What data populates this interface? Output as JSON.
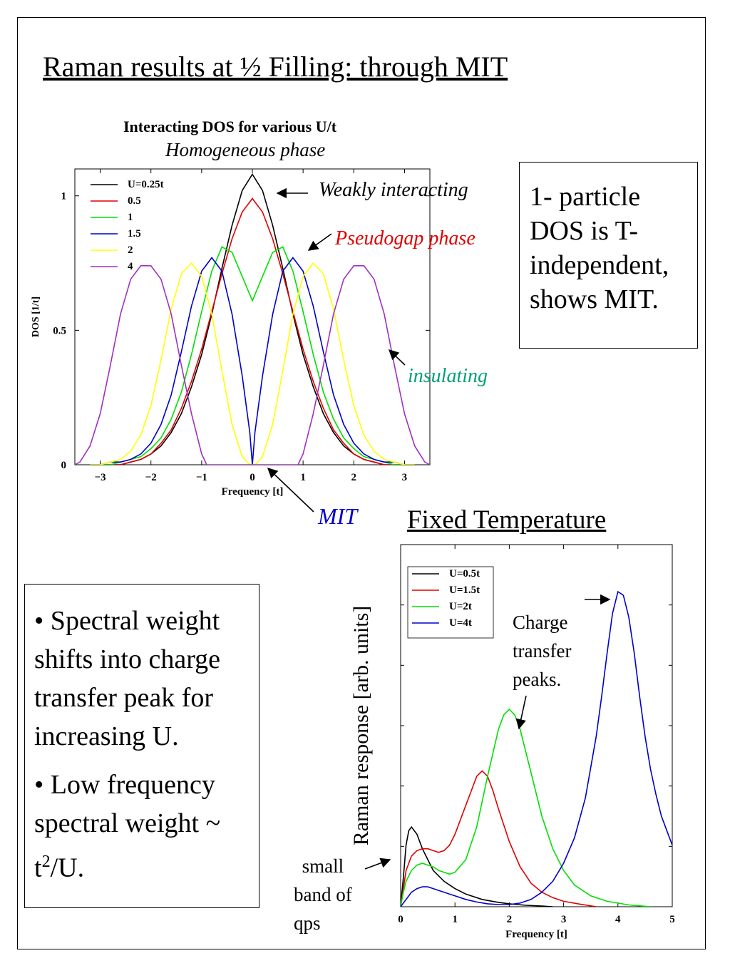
{
  "slide": {
    "title": "Raman results at ½ Filling: through MIT"
  },
  "chart1": {
    "heading": "Interacting DOS for various U/t",
    "subheading": "Homogeneous phase"
  },
  "annotations": {
    "weakly": "Weakly interacting",
    "pseudogap": "Pseudogap phase",
    "insulating": "insulating",
    "mit": "MIT",
    "fixed_temperature": "Fixed Temperature",
    "charge_transfer": [
      "Charge",
      "transfer",
      "peaks."
    ],
    "small_band": [
      "small",
      "band of",
      "qps"
    ]
  },
  "box_dos": {
    "lines": [
      "1- particle",
      "DOS is T-",
      "independent,",
      "shows MIT."
    ]
  },
  "box_bullets": {
    "bullet1": "• Spectral weight shifts into charge transfer peak for increasing U.",
    "bullet2_text": "• Low frequency spectral weight ~ t",
    "bullet2_sup": "2",
    "bullet2_end": "/U."
  },
  "colors": {
    "black": "#000000",
    "red": "#e00000",
    "green": "#00e000",
    "blue": "#0000cc",
    "yellow": "#ffff00",
    "purple": "#a030c0",
    "annotation_red": "#e00000",
    "annotation_teal": "#00a07a",
    "annotation_blue": "#0000cc"
  },
  "chart_data": [
    {
      "type": "line",
      "title": "",
      "xlabel": "Frequency [t]",
      "ylabel": "DOS [1/t]",
      "xlim": [
        -3.5,
        3.5
      ],
      "ylim": [
        0,
        1.1
      ],
      "xticks": [
        -3,
        -2,
        -1,
        0,
        1,
        2,
        3
      ],
      "xtick_labels": [
        "−3",
        "−2",
        "−1",
        "0",
        "1",
        "2",
        "3"
      ],
      "yticks": [
        0,
        0.5,
        1
      ],
      "ytick_labels": [
        "0",
        "0.5",
        "1"
      ],
      "legend_position": "top-left",
      "series": [
        {
          "name": "U=0.25t",
          "color": "#000000",
          "x": [
            -3.2,
            -3.0,
            -2.8,
            -2.6,
            -2.4,
            -2.2,
            -2.0,
            -1.8,
            -1.6,
            -1.4,
            -1.2,
            -1.0,
            -0.8,
            -0.6,
            -0.4,
            -0.2,
            0,
            0.2,
            0.4,
            0.6,
            0.8,
            1.0,
            1.2,
            1.4,
            1.6,
            1.8,
            2.0,
            2.2,
            2.4,
            2.6,
            2.8,
            3.0,
            3.2
          ],
          "y": [
            0,
            0,
            0,
            0,
            0.01,
            0.02,
            0.04,
            0.07,
            0.12,
            0.19,
            0.29,
            0.41,
            0.56,
            0.73,
            0.89,
            1.02,
            1.08,
            1.02,
            0.89,
            0.73,
            0.56,
            0.41,
            0.29,
            0.19,
            0.12,
            0.07,
            0.04,
            0.02,
            0.01,
            0,
            0,
            0,
            0
          ]
        },
        {
          "name": "0.5",
          "color": "#e00000",
          "x": [
            -3.2,
            -3.0,
            -2.8,
            -2.6,
            -2.4,
            -2.2,
            -2.0,
            -1.8,
            -1.6,
            -1.4,
            -1.2,
            -1.0,
            -0.8,
            -0.6,
            -0.4,
            -0.2,
            0,
            0.2,
            0.4,
            0.6,
            0.8,
            1.0,
            1.2,
            1.4,
            1.6,
            1.8,
            2.0,
            2.2,
            2.4,
            2.6,
            2.8,
            3.0,
            3.2
          ],
          "y": [
            0,
            0,
            0,
            0,
            0.01,
            0.02,
            0.04,
            0.08,
            0.13,
            0.21,
            0.31,
            0.43,
            0.57,
            0.71,
            0.84,
            0.94,
            0.99,
            0.94,
            0.84,
            0.71,
            0.57,
            0.43,
            0.31,
            0.21,
            0.13,
            0.08,
            0.04,
            0.02,
            0.01,
            0,
            0,
            0,
            0
          ]
        },
        {
          "name": "1",
          "color": "#00e000",
          "x": [
            -3.2,
            -3.0,
            -2.8,
            -2.6,
            -2.4,
            -2.2,
            -2.0,
            -1.8,
            -1.6,
            -1.4,
            -1.2,
            -1.0,
            -0.8,
            -0.6,
            -0.4,
            -0.2,
            0,
            0.2,
            0.4,
            0.6,
            0.8,
            1.0,
            1.2,
            1.4,
            1.6,
            1.8,
            2.0,
            2.2,
            2.4,
            2.6,
            2.8,
            3.0,
            3.2
          ],
          "y": [
            0,
            0,
            0,
            0.01,
            0.02,
            0.03,
            0.06,
            0.1,
            0.17,
            0.27,
            0.41,
            0.57,
            0.72,
            0.81,
            0.79,
            0.7,
            0.61,
            0.7,
            0.79,
            0.81,
            0.72,
            0.57,
            0.41,
            0.27,
            0.17,
            0.1,
            0.06,
            0.03,
            0.02,
            0.01,
            0,
            0,
            0
          ]
        },
        {
          "name": "1.5",
          "color": "#0000cc",
          "x": [
            -3.2,
            -3.0,
            -2.8,
            -2.6,
            -2.4,
            -2.2,
            -2.0,
            -1.8,
            -1.6,
            -1.4,
            -1.2,
            -1.0,
            -0.8,
            -0.6,
            -0.4,
            -0.2,
            -0.05,
            0,
            0.05,
            0.2,
            0.4,
            0.6,
            0.8,
            1.0,
            1.2,
            1.4,
            1.6,
            1.8,
            2.0,
            2.2,
            2.4,
            2.6,
            2.8,
            3.0,
            3.2
          ],
          "y": [
            0,
            0,
            0.01,
            0.01,
            0.02,
            0.04,
            0.08,
            0.15,
            0.26,
            0.42,
            0.59,
            0.72,
            0.77,
            0.72,
            0.56,
            0.33,
            0.12,
            0,
            0.12,
            0.33,
            0.56,
            0.72,
            0.77,
            0.72,
            0.59,
            0.42,
            0.26,
            0.15,
            0.08,
            0.04,
            0.02,
            0.01,
            0.01,
            0,
            0
          ]
        },
        {
          "name": "2",
          "color": "#ffff00",
          "x": [
            -3.2,
            -3.0,
            -2.8,
            -2.6,
            -2.4,
            -2.2,
            -2.0,
            -1.8,
            -1.6,
            -1.4,
            -1.2,
            -1.0,
            -0.8,
            -0.6,
            -0.4,
            -0.2,
            -0.05,
            0.05,
            0.2,
            0.4,
            0.6,
            0.8,
            1.0,
            1.2,
            1.4,
            1.6,
            1.8,
            2.0,
            2.2,
            2.4,
            2.6,
            2.8,
            3.0,
            3.2
          ],
          "y": [
            0,
            0,
            0.01,
            0.02,
            0.05,
            0.11,
            0.22,
            0.39,
            0.58,
            0.71,
            0.75,
            0.7,
            0.56,
            0.35,
            0.15,
            0.03,
            0,
            0,
            0.03,
            0.15,
            0.35,
            0.56,
            0.7,
            0.75,
            0.71,
            0.58,
            0.39,
            0.22,
            0.11,
            0.05,
            0.02,
            0.01,
            0,
            0
          ]
        },
        {
          "name": "4",
          "color": "#a030c0",
          "x": [
            -3.5,
            -3.4,
            -3.2,
            -3.0,
            -2.8,
            -2.6,
            -2.4,
            -2.2,
            -2.0,
            -1.8,
            -1.6,
            -1.4,
            -1.2,
            -1.0,
            -0.9,
            0.9,
            1.0,
            1.2,
            1.4,
            1.6,
            1.8,
            2.0,
            2.2,
            2.4,
            2.6,
            2.8,
            3.0,
            3.2,
            3.4,
            3.5
          ],
          "y": [
            0,
            0.01,
            0.07,
            0.19,
            0.37,
            0.56,
            0.69,
            0.74,
            0.74,
            0.69,
            0.56,
            0.37,
            0.19,
            0.04,
            0,
            0,
            0.04,
            0.19,
            0.37,
            0.56,
            0.69,
            0.74,
            0.74,
            0.69,
            0.56,
            0.37,
            0.19,
            0.07,
            0.01,
            0
          ]
        }
      ]
    },
    {
      "type": "line",
      "title": "",
      "xlabel": "Frequency [t]",
      "ylabel": "Raman response [arb. units]",
      "xlim": [
        0,
        5
      ],
      "ylim": [
        0,
        1.0
      ],
      "xticks": [
        0,
        1,
        2,
        3,
        4,
        5
      ],
      "xtick_labels": [
        "0",
        "1",
        "2",
        "3",
        "4",
        "5"
      ],
      "yticks": [],
      "legend_position": "top-left",
      "series": [
        {
          "name": "U=0.5t",
          "color": "#000000",
          "x": [
            0,
            0.05,
            0.1,
            0.15,
            0.2,
            0.3,
            0.4,
            0.5,
            0.6,
            0.8,
            1.0,
            1.2,
            1.5,
            1.8,
            2.0,
            2.3,
            2.6,
            2.8
          ],
          "y": [
            0,
            0.08,
            0.17,
            0.21,
            0.22,
            0.2,
            0.16,
            0.13,
            0.1,
            0.07,
            0.05,
            0.035,
            0.02,
            0.012,
            0.008,
            0.004,
            0.002,
            0
          ]
        },
        {
          "name": "U=1.5t",
          "color": "#e00000",
          "x": [
            0,
            0.05,
            0.1,
            0.2,
            0.3,
            0.4,
            0.5,
            0.6,
            0.7,
            0.8,
            0.9,
            1.0,
            1.1,
            1.2,
            1.3,
            1.4,
            1.5,
            1.6,
            1.7,
            1.8,
            2.0,
            2.2,
            2.4,
            2.6,
            2.8,
            3.0,
            3.3,
            3.6
          ],
          "y": [
            0,
            0.05,
            0.1,
            0.14,
            0.155,
            0.16,
            0.16,
            0.155,
            0.15,
            0.155,
            0.17,
            0.2,
            0.24,
            0.28,
            0.32,
            0.36,
            0.375,
            0.36,
            0.32,
            0.27,
            0.18,
            0.11,
            0.065,
            0.04,
            0.025,
            0.015,
            0.007,
            0
          ]
        },
        {
          "name": "U=2t",
          "color": "#00e000",
          "x": [
            0,
            0.05,
            0.1,
            0.2,
            0.3,
            0.4,
            0.5,
            0.6,
            0.7,
            0.8,
            0.9,
            1.0,
            1.2,
            1.4,
            1.6,
            1.8,
            1.9,
            2.0,
            2.1,
            2.2,
            2.4,
            2.6,
            2.8,
            3.0,
            3.2,
            3.5,
            3.8,
            4.2,
            4.6
          ],
          "y": [
            0,
            0.04,
            0.07,
            0.1,
            0.115,
            0.12,
            0.115,
            0.11,
            0.1,
            0.095,
            0.09,
            0.095,
            0.13,
            0.22,
            0.36,
            0.49,
            0.53,
            0.545,
            0.53,
            0.49,
            0.37,
            0.25,
            0.16,
            0.1,
            0.06,
            0.03,
            0.015,
            0.005,
            0
          ]
        },
        {
          "name": "U=4t",
          "color": "#0000cc",
          "x": [
            0,
            0.1,
            0.2,
            0.3,
            0.4,
            0.5,
            0.6,
            0.8,
            1.0,
            1.2,
            1.4,
            1.6,
            1.8,
            2.0,
            2.2,
            2.4,
            2.6,
            2.8,
            3.0,
            3.2,
            3.4,
            3.6,
            3.7,
            3.8,
            3.9,
            4.0,
            4.1,
            4.2,
            4.3,
            4.4,
            4.5,
            4.6,
            4.7,
            4.8,
            4.9,
            5.0
          ],
          "y": [
            0,
            0.02,
            0.04,
            0.05,
            0.055,
            0.055,
            0.05,
            0.04,
            0.03,
            0.02,
            0.013,
            0.008,
            0.006,
            0.006,
            0.01,
            0.02,
            0.04,
            0.07,
            0.12,
            0.19,
            0.3,
            0.47,
            0.58,
            0.7,
            0.81,
            0.87,
            0.86,
            0.8,
            0.7,
            0.58,
            0.47,
            0.38,
            0.31,
            0.25,
            0.21,
            0.17
          ]
        }
      ]
    }
  ]
}
